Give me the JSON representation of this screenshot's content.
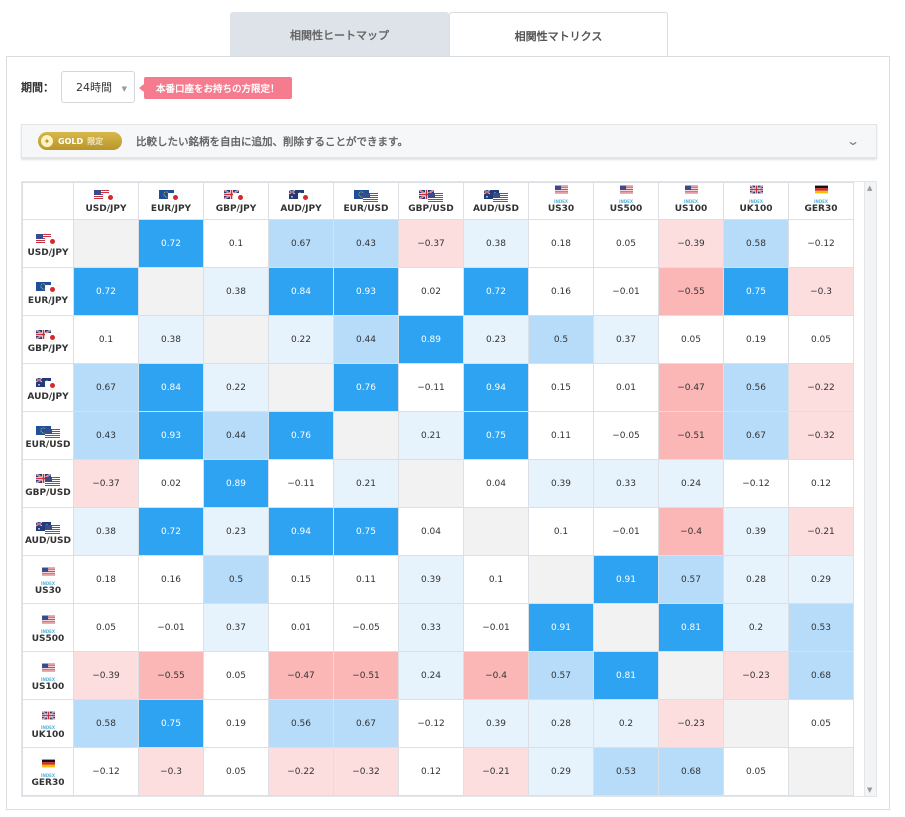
{
  "tabs": [
    {
      "label": "相関性ヒートマップ",
      "active": false
    },
    {
      "label": "相関性マトリクス",
      "active": true
    }
  ],
  "period": {
    "label": "期間：",
    "value": "24時間"
  },
  "promo_badge": "本番口座をお持ちの方限定！",
  "gold_bar": {
    "badge_gold": "GOLD",
    "badge_label": "限定",
    "text": "比較したい銘柄を自由に追加、削除することができます。"
  },
  "symbols": [
    {
      "name": "USD/JPY",
      "flags": [
        "us",
        "jp"
      ]
    },
    {
      "name": "EUR/JPY",
      "flags": [
        "eu",
        "jp"
      ]
    },
    {
      "name": "GBP/JPY",
      "flags": [
        "gb",
        "jp"
      ]
    },
    {
      "name": "AUD/JPY",
      "flags": [
        "au",
        "jp"
      ]
    },
    {
      "name": "EUR/USD",
      "flags": [
        "eu",
        "us"
      ]
    },
    {
      "name": "GBP/USD",
      "flags": [
        "gb",
        "us"
      ]
    },
    {
      "name": "AUD/USD",
      "flags": [
        "au",
        "us"
      ]
    },
    {
      "name": "US30",
      "flags": [
        "us"
      ],
      "sub": "INDEX"
    },
    {
      "name": "US500",
      "flags": [
        "us"
      ],
      "sub": "INDEX"
    },
    {
      "name": "US100",
      "flags": [
        "us"
      ],
      "sub": "INDEX"
    },
    {
      "name": "UK100",
      "flags": [
        "gb"
      ],
      "sub": "INDEX"
    },
    {
      "name": "GER30",
      "flags": [
        "de"
      ],
      "sub": "INDEX"
    }
  ],
  "matrix": [
    [
      null,
      0.72,
      0.1,
      0.67,
      0.43,
      -0.37,
      0.38,
      0.18,
      0.05,
      -0.39,
      0.58,
      -0.12
    ],
    [
      0.72,
      null,
      0.38,
      0.84,
      0.93,
      0.02,
      0.72,
      0.16,
      -0.01,
      -0.55,
      0.75,
      -0.3
    ],
    [
      0.1,
      0.38,
      null,
      0.22,
      0.44,
      0.89,
      0.23,
      0.5,
      0.37,
      0.05,
      0.19,
      0.05
    ],
    [
      0.67,
      0.84,
      0.22,
      null,
      0.76,
      -0.11,
      0.94,
      0.15,
      0.01,
      -0.47,
      0.56,
      -0.22
    ],
    [
      0.43,
      0.93,
      0.44,
      0.76,
      null,
      0.21,
      0.75,
      0.11,
      -0.05,
      -0.51,
      0.67,
      -0.32
    ],
    [
      -0.37,
      0.02,
      0.89,
      -0.11,
      0.21,
      null,
      0.04,
      0.39,
      0.33,
      0.24,
      -0.12,
      0.12
    ],
    [
      0.38,
      0.72,
      0.23,
      0.94,
      0.75,
      0.04,
      null,
      0.1,
      -0.01,
      -0.4,
      0.39,
      -0.21
    ],
    [
      0.18,
      0.16,
      0.5,
      0.15,
      0.11,
      0.39,
      0.1,
      null,
      0.91,
      0.57,
      0.28,
      0.29
    ],
    [
      0.05,
      -0.01,
      0.37,
      0.01,
      -0.05,
      0.33,
      -0.01,
      0.91,
      null,
      0.81,
      0.2,
      0.53
    ],
    [
      -0.39,
      -0.55,
      0.05,
      -0.47,
      -0.51,
      0.24,
      -0.4,
      0.57,
      0.81,
      null,
      -0.23,
      0.68
    ],
    [
      0.58,
      0.75,
      0.19,
      0.56,
      0.67,
      -0.12,
      0.39,
      0.28,
      0.2,
      -0.23,
      null,
      0.05
    ],
    [
      -0.12,
      -0.3,
      0.05,
      -0.22,
      -0.32,
      0.12,
      -0.21,
      0.29,
      0.53,
      0.68,
      0.05,
      null
    ]
  ],
  "colors": {
    "strong_pos": "#2ea3f2",
    "mid_pos": "#b6dcfa",
    "weak_pos": "#e6f3fd",
    "neutral": "#ffffff",
    "weak_neg": "#fddede",
    "strong_neg": "#fbb6b6",
    "diagonal": "#f2f2f2"
  }
}
